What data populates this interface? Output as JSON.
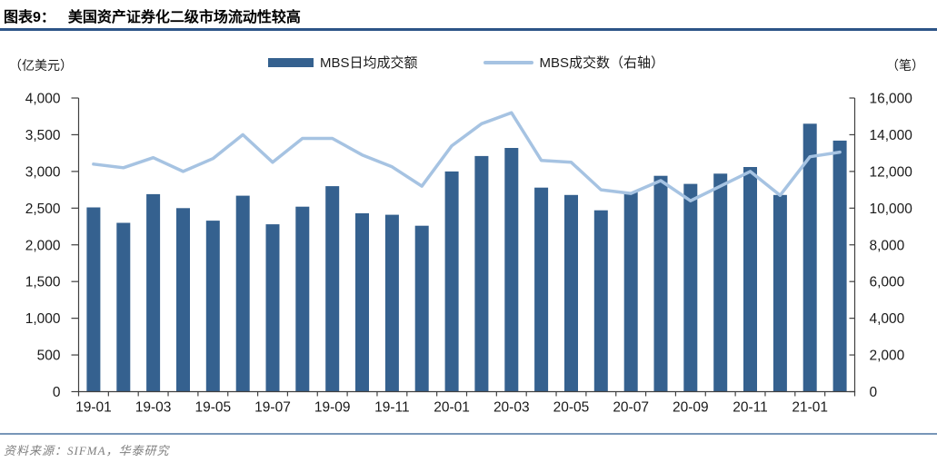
{
  "header": {
    "figure_label": "图表9：",
    "title": "美国资产证券化二级市场流动性较高"
  },
  "footer": {
    "source": "资料来源：SIFMA，华泰研究"
  },
  "colors": {
    "bar": "#35618F",
    "line": "#A6C3E2",
    "title_rule": "#2C5487",
    "source_rule": "#7896B8",
    "axis": "#404040",
    "tick_text": "#1a1a1a"
  },
  "chart_data": {
    "type": "bar",
    "subtype": "bar+line combo, dual axis",
    "grid": false,
    "legend_position": "top-center",
    "categories": [
      "19-01",
      "19-02",
      "19-03",
      "19-04",
      "19-05",
      "19-06",
      "19-07",
      "19-08",
      "19-09",
      "19-10",
      "19-11",
      "19-12",
      "20-01",
      "20-02",
      "20-03",
      "20-04",
      "20-05",
      "20-06",
      "20-07",
      "20-08",
      "20-09",
      "20-10",
      "20-11",
      "20-12",
      "21-01",
      "21-02"
    ],
    "x_ticks_shown_every": 2,
    "series": [
      {
        "name": "MBS日均成交额",
        "type": "bar",
        "axis": "left",
        "color": "#35618F",
        "values": [
          2510,
          2300,
          2690,
          2500,
          2330,
          2670,
          2280,
          2520,
          2800,
          2430,
          2410,
          2260,
          3000,
          3210,
          3320,
          2780,
          2680,
          2470,
          2720,
          2940,
          2830,
          2970,
          3060,
          2680,
          3650,
          3420
        ]
      },
      {
        "name": "MBS成交数（右轴）",
        "type": "line",
        "axis": "right",
        "color": "#A6C3E2",
        "values": [
          12400,
          12200,
          12750,
          12000,
          12700,
          14000,
          12500,
          13800,
          13800,
          12900,
          12250,
          11200,
          13400,
          14600,
          15200,
          12600,
          12500,
          11000,
          10800,
          11500,
          10400,
          11200,
          12000,
          10700,
          12800,
          13050
        ]
      }
    ],
    "left_axis": {
      "unit": "（亿美元）",
      "min": 0,
      "max": 4000,
      "step": 500,
      "tick_labels": [
        "0",
        "500",
        "1,000",
        "1,500",
        "2,000",
        "2,500",
        "3,000",
        "3,500",
        "4,000"
      ]
    },
    "right_axis": {
      "unit": "（笔）",
      "min": 0,
      "max": 16000,
      "step": 2000,
      "tick_labels": [
        "0",
        "2,000",
        "4,000",
        "6,000",
        "8,000",
        "10,000",
        "12,000",
        "14,000",
        "16,000"
      ]
    }
  }
}
